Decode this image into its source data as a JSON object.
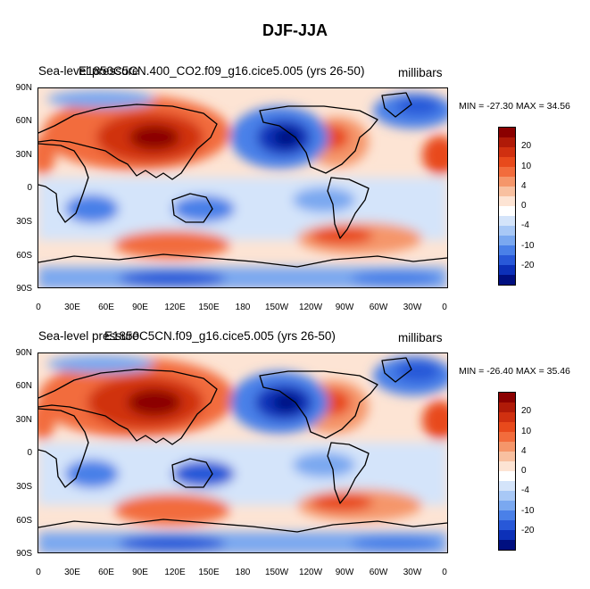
{
  "main_title": "DJF-JJA",
  "panels": [
    {
      "title": "Sea-level pressure",
      "case": "E1850C5CN.400_CO2.f09_g16.cice5.005 (yrs 26-50)",
      "units": "millibars",
      "min_max": "MIN = -27.30 MAX =  34.56"
    },
    {
      "title": "Sea-level pressure",
      "case": "E1850C5CN.f09_g16.cice5.005 (yrs 26-50)",
      "units": "millibars",
      "min_max": "MIN = -26.40 MAX =  35.46"
    }
  ],
  "lat_labels": [
    "90N",
    "60N",
    "30N",
    "0",
    "30S",
    "60S",
    "90S"
  ],
  "lon_labels": [
    "0",
    "30E",
    "60E",
    "90E",
    "120E",
    "150E",
    "180",
    "150W",
    "120W",
    "90W",
    "60W",
    "30W",
    "0"
  ],
  "colorbar_labels": [
    "20",
    "10",
    "4",
    "0",
    "-4",
    "-10",
    "-20"
  ],
  "colorbar_colors": [
    "#8b0000",
    "#b01a08",
    "#d03010",
    "#e84a1c",
    "#f26c3c",
    "#f5966a",
    "#f8c0a0",
    "#fde4d4",
    "#ffffff",
    "#d4e4fa",
    "#a8c8f6",
    "#7aa8f0",
    "#4a80e8",
    "#2858d8",
    "#0c30b8",
    "#000f80"
  ],
  "colors": {
    "background_field": "#ffe3d4",
    "land_outline": "#000000"
  }
}
